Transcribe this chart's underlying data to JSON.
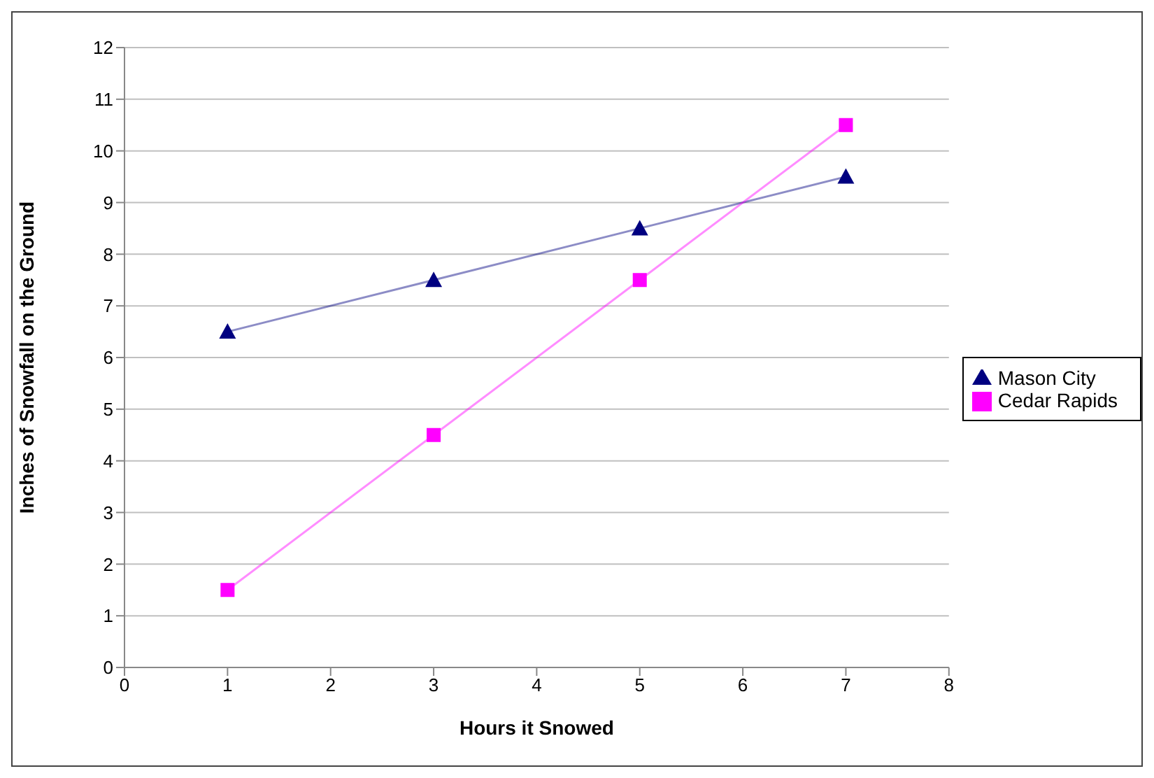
{
  "chart_data": {
    "type": "line",
    "xlabel": "Hours it Snowed",
    "ylabel": "Inches of Snowfall on the Ground",
    "x": [
      1,
      3,
      5,
      7
    ],
    "series": [
      {
        "name": "Mason City",
        "color": "#000080",
        "marker": "triangle",
        "values": [
          6.5,
          7.5,
          8.5,
          9.5
        ]
      },
      {
        "name": "Cedar Rapids",
        "color": "#ff00ff",
        "marker": "square",
        "values": [
          1.5,
          4.5,
          7.5,
          10.5
        ]
      }
    ],
    "xlim": [
      0,
      8
    ],
    "xticks": [
      0,
      1,
      2,
      3,
      4,
      5,
      6,
      7,
      8
    ],
    "ylim": [
      0,
      12
    ],
    "yticks": [
      0,
      1,
      2,
      3,
      4,
      5,
      6,
      7,
      8,
      9,
      10,
      11,
      12
    ],
    "grid": "y",
    "legend": "right"
  }
}
